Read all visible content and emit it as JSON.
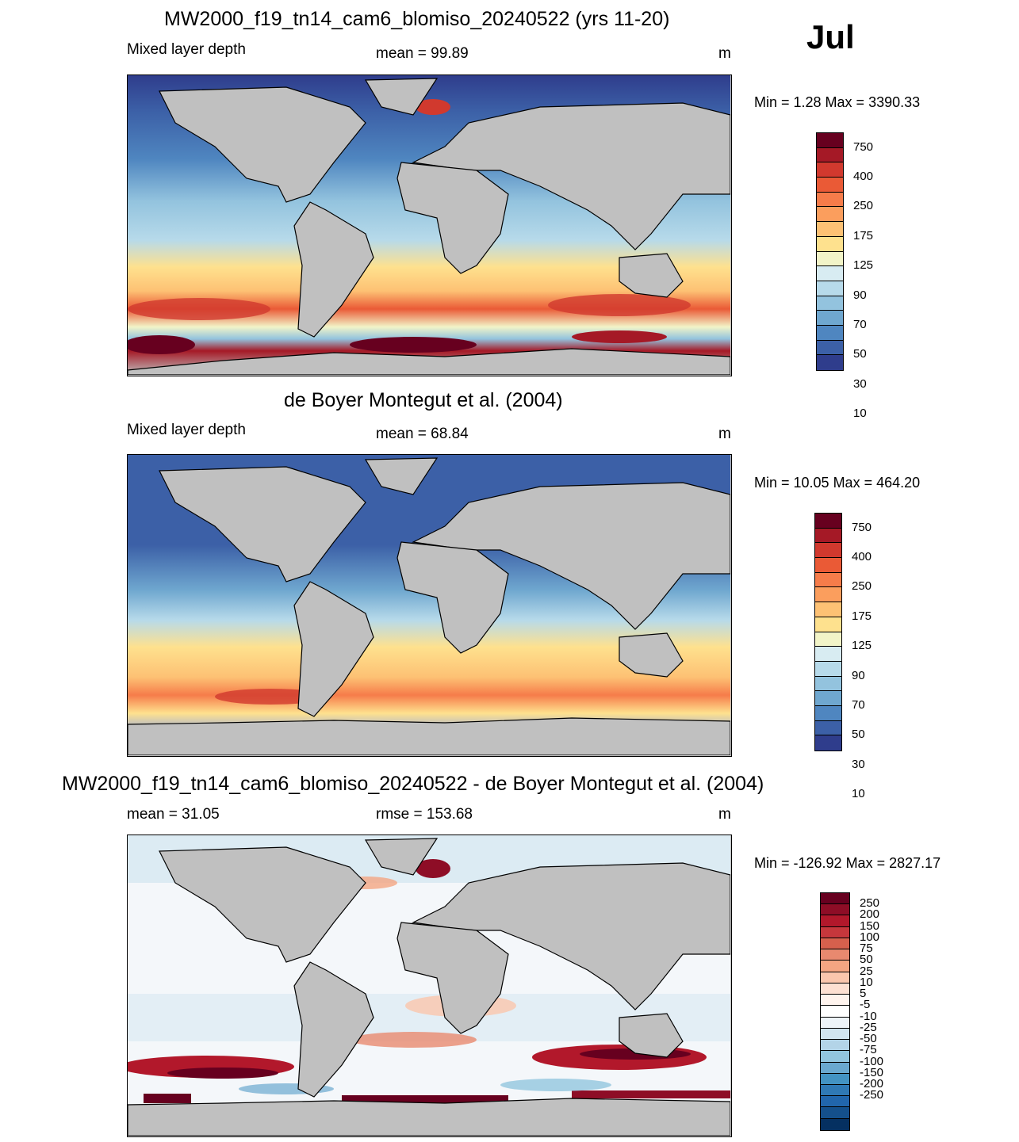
{
  "month": "Jul",
  "panels": [
    {
      "title": "MW2000_f19_tn14_cam6_blomiso_20240522 (yrs 11-20)",
      "left_label": "Mixed layer depth",
      "center_label": "mean =  99.89",
      "unit": "m",
      "minmax": "Min =   1.28 Max = 3390.33"
    },
    {
      "title": "de Boyer Montegut et al. (2004)",
      "left_label": "Mixed layer depth",
      "center_label": "mean =  68.84",
      "unit": "m",
      "minmax": "Min =  10.05 Max = 464.20"
    },
    {
      "title": "MW2000_f19_tn14_cam6_blomiso_20240522 - de Boyer Montegut et al. (2004)",
      "left_label": "mean =  31.05",
      "center_label": "rmse = 153.68",
      "unit": "m",
      "minmax": "Min = -126.92 Max = 2827.17"
    }
  ],
  "colorbars": {
    "depth": {
      "colors": [
        "#67001f",
        "#a51926",
        "#d1392e",
        "#ea5a36",
        "#f67c4a",
        "#fb9e5d",
        "#fdc174",
        "#fee18e",
        "#f2f4c8",
        "#d8ecf2",
        "#b7daea",
        "#93c3de",
        "#6fa7cf",
        "#4f86c0",
        "#3c60a7",
        "#2f3d8c"
      ],
      "labels": [
        "750",
        "400",
        "250",
        "175",
        "125",
        "90",
        "70",
        "50",
        "30",
        "10"
      ]
    },
    "diff": {
      "colors": [
        "#67001f",
        "#8e0d26",
        "#b2182b",
        "#c6373c",
        "#d6604d",
        "#e8896f",
        "#f4a582",
        "#fac6ad",
        "#fde0d2",
        "#fff4ee",
        "#ffffff",
        "#eef4f9",
        "#d1e5f0",
        "#b3d4e8",
        "#92c5de",
        "#6aa8cf",
        "#4393c3",
        "#2f79b5",
        "#2166ac",
        "#14508c",
        "#053061"
      ],
      "labels": [
        "250",
        "200",
        "150",
        "100",
        "75",
        "50",
        "25",
        "10",
        "5",
        "-5",
        "-10",
        "-25",
        "-50",
        "-75",
        "-100",
        "-150",
        "-200",
        "-250"
      ]
    }
  }
}
